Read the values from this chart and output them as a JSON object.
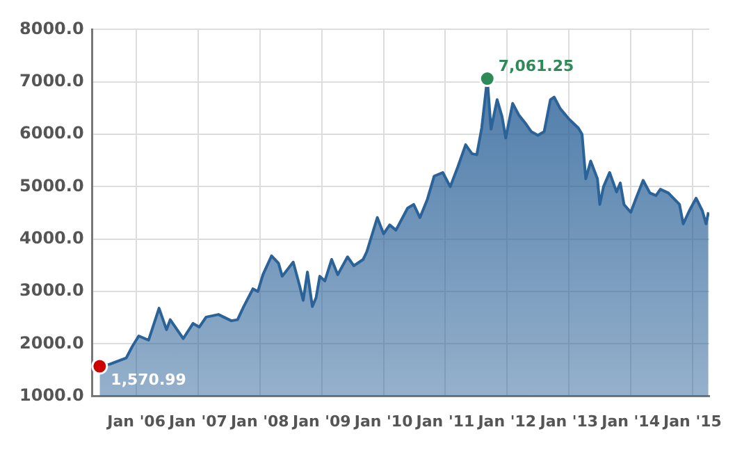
{
  "chart_data": {
    "type": "area",
    "x": [
      "2005-05-29",
      "2005-07-27",
      "2005-11-02",
      "2005-12-08",
      "2006-01-15",
      "2006-03-14",
      "2006-05-15",
      "2006-06-28",
      "2006-07-20",
      "2006-10-05",
      "2006-12-02",
      "2007-01-08",
      "2007-02-17",
      "2007-05-01",
      "2007-07-16",
      "2007-08-22",
      "2007-09-27",
      "2007-11-21",
      "2007-12-20",
      "2008-01-19",
      "2008-03-10",
      "2008-04-20",
      "2008-05-12",
      "2008-07-16",
      "2008-08-22",
      "2008-09-13",
      "2008-10-08",
      "2008-11-06",
      "2008-11-28",
      "2008-12-20",
      "2009-01-19",
      "2009-02-28",
      "2009-04-05",
      "2009-06-02",
      "2009-07-09",
      "2009-09-02",
      "2009-09-24",
      "2009-11-25",
      "2010-01-01",
      "2010-02-06",
      "2010-03-15",
      "2010-05-23",
      "2010-06-28",
      "2010-08-04",
      "2010-09-17",
      "2010-10-27",
      "2010-12-17",
      "2011-01-30",
      "2011-03-15",
      "2011-05-01",
      "2011-06-07",
      "2011-07-06",
      "2011-08-04",
      "2011-09-06",
      "2011-09-28",
      "2011-11-03",
      "2011-12-02",
      "2011-12-24",
      "2012-02-03",
      "2012-03-10",
      "2012-04-16",
      "2012-05-23",
      "2012-07-01",
      "2012-08-07",
      "2012-09-13",
      "2012-10-05",
      "2012-11-10",
      "2013-01-01",
      "2013-02-25",
      "2013-03-19",
      "2013-04-10",
      "2013-05-09",
      "2013-06-18",
      "2013-07-02",
      "2013-07-24",
      "2013-08-29",
      "2013-10-09",
      "2013-10-31",
      "2013-11-22",
      "2014-01-01",
      "2014-01-30",
      "2014-03-15",
      "2014-04-24",
      "2014-05-30",
      "2014-06-25",
      "2014-08-11",
      "2014-10-16",
      "2014-11-07",
      "2014-12-13",
      "2015-01-22",
      "2015-02-28",
      "2015-03-22",
      "2015-04-05"
    ],
    "series": [
      {
        "color": "#2b6298",
        "values": [
          1570.99,
          1610,
          1730,
          1950,
          2150,
          2070,
          2680,
          2270,
          2460,
          2100,
          2390,
          2320,
          2510,
          2560,
          2440,
          2460,
          2710,
          3050,
          3000,
          3320,
          3680,
          3540,
          3290,
          3560,
          3120,
          2830,
          3370,
          2710,
          2880,
          3290,
          3200,
          3610,
          3320,
          3660,
          3490,
          3610,
          3760,
          4410,
          4100,
          4270,
          4170,
          4590,
          4660,
          4410,
          4760,
          5200,
          5270,
          5000,
          5370,
          5800,
          5630,
          5610,
          6120,
          7061.25,
          6100,
          6660,
          6340,
          5930,
          6590,
          6370,
          6220,
          6050,
          5980,
          6050,
          6660,
          6710,
          6490,
          6290,
          6120,
          6000,
          5150,
          5490,
          5150,
          4660,
          5000,
          5270,
          4900,
          5070,
          4660,
          4510,
          4760,
          5120,
          4880,
          4830,
          4950,
          4880,
          4660,
          4290,
          4540,
          4780,
          4540,
          4290,
          4510
        ]
      }
    ],
    "xlim": [
      "2005-04-15",
      "2015-04-10"
    ],
    "xticks": [
      {
        "value": "2006-01-01",
        "label": "Jan '06"
      },
      {
        "value": "2007-01-01",
        "label": "Jan '07"
      },
      {
        "value": "2008-01-01",
        "label": "Jan '08"
      },
      {
        "value": "2009-01-01",
        "label": "Jan '09"
      },
      {
        "value": "2010-01-01",
        "label": "Jan '10"
      },
      {
        "value": "2011-01-01",
        "label": "Jan '11"
      },
      {
        "value": "2012-01-01",
        "label": "Jan '12"
      },
      {
        "value": "2013-01-01",
        "label": "Jan '13"
      },
      {
        "value": "2014-01-01",
        "label": "Jan '14"
      },
      {
        "value": "2015-01-01",
        "label": "Jan '15"
      }
    ],
    "ylim": [
      1000,
      8000
    ],
    "yticks": [
      {
        "value": 1000,
        "label": "1000.0"
      },
      {
        "value": 2000,
        "label": "2000.0"
      },
      {
        "value": 3000,
        "label": "3000.0"
      },
      {
        "value": 4000,
        "label": "4000.0"
      },
      {
        "value": 5000,
        "label": "5000.0"
      },
      {
        "value": 6000,
        "label": "6000.0"
      },
      {
        "value": 7000,
        "label": "7000.0"
      },
      {
        "value": 8000,
        "label": "8000.0"
      }
    ],
    "annotations": [
      {
        "text": "1,570.99",
        "x": "2005-05-29",
        "y": 1570.99
      },
      {
        "text": "7,061.25",
        "x": "2011-09-06",
        "y": 7061.25
      }
    ],
    "grid": true,
    "legend": false
  }
}
